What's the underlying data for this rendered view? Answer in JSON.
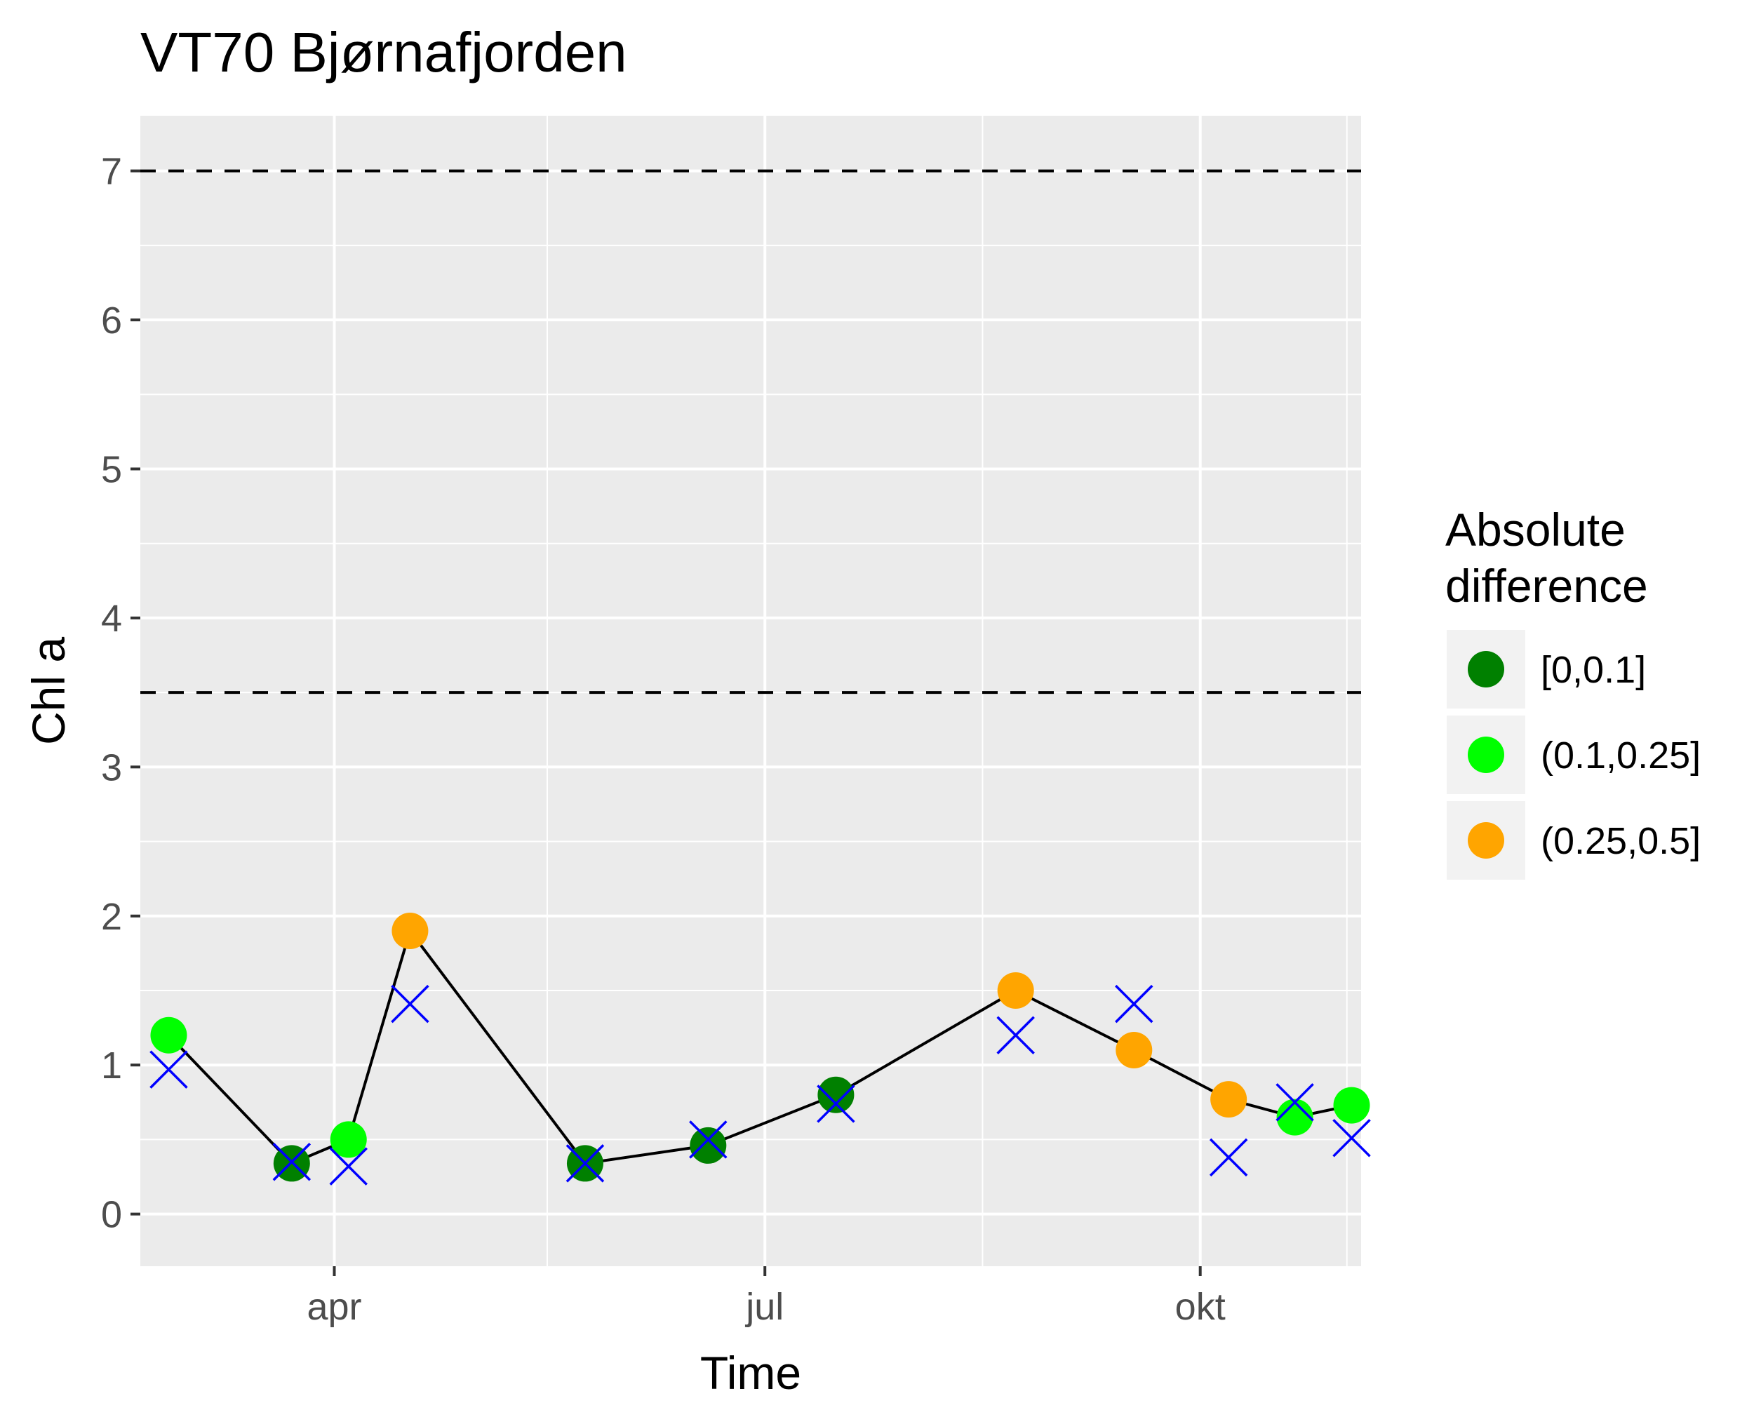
{
  "chart_data": {
    "type": "scatter",
    "title": "VT70 Bjørnafjorden",
    "xlabel": "Time",
    "ylabel": "Chl a",
    "xlim": [
      "2017-02-19",
      "2017-11-04"
    ],
    "ylim": [
      -0.35,
      7.37
    ],
    "x_ticks": [
      {
        "date": "2017-04-01",
        "label": "apr"
      },
      {
        "date": "2017-07-01",
        "label": "jul"
      },
      {
        "date": "2017-10-01",
        "label": "okt"
      }
    ],
    "x_minor_ticks": [
      "2017-02-15",
      "2017-05-16",
      "2017-08-16",
      "2017-11-01"
    ],
    "y_ticks": [
      0,
      1,
      2,
      3,
      4,
      5,
      6,
      7
    ],
    "grid": true,
    "reference_lines": [
      {
        "y": 7,
        "style": "dashed"
      },
      {
        "y": 3.5,
        "style": "dashed"
      }
    ],
    "legend": {
      "title_lines": [
        "Absolute",
        "difference"
      ],
      "placement": "right",
      "entries": [
        {
          "label": "[0,0.1]",
          "color": "#008000"
        },
        {
          "label": "(0.1,0.25]",
          "color": "#00ff00"
        },
        {
          "label": "(0.25,0.5]",
          "color": "#ffa500"
        }
      ]
    },
    "series": [
      {
        "kind": "line-points",
        "line_color": "#000000",
        "points": [
          {
            "x": "2017-02-25",
            "y": 1.2,
            "class": 1
          },
          {
            "x": "2017-03-23",
            "y": 0.34,
            "class": 0
          },
          {
            "x": "2017-04-04",
            "y": 0.5,
            "class": 1
          },
          {
            "x": "2017-04-17",
            "y": 1.9,
            "class": 2
          },
          {
            "x": "2017-05-24",
            "y": 0.34,
            "class": 0
          },
          {
            "x": "2017-06-19",
            "y": 0.46,
            "class": 0
          },
          {
            "x": "2017-07-16",
            "y": 0.8,
            "class": 0
          },
          {
            "x": "2017-08-23",
            "y": 1.5,
            "class": 2
          },
          {
            "x": "2017-09-17",
            "y": 1.1,
            "class": 2
          },
          {
            "x": "2017-10-07",
            "y": 0.77,
            "class": 2
          },
          {
            "x": "2017-10-21",
            "y": 0.65,
            "class": 1
          },
          {
            "x": "2017-11-02",
            "y": 0.73,
            "class": 1
          }
        ]
      },
      {
        "kind": "x-markers",
        "color": "#0000ff",
        "points": [
          {
            "x": "2017-02-25",
            "y": 0.97
          },
          {
            "x": "2017-03-23",
            "y": 0.35
          },
          {
            "x": "2017-04-04",
            "y": 0.32
          },
          {
            "x": "2017-04-17",
            "y": 1.41
          },
          {
            "x": "2017-05-24",
            "y": 0.34
          },
          {
            "x": "2017-06-19",
            "y": 0.5
          },
          {
            "x": "2017-07-16",
            "y": 0.74
          },
          {
            "x": "2017-08-23",
            "y": 1.2
          },
          {
            "x": "2017-09-17",
            "y": 1.41
          },
          {
            "x": "2017-10-07",
            "y": 0.38
          },
          {
            "x": "2017-10-21",
            "y": 0.75
          },
          {
            "x": "2017-11-02",
            "y": 0.51
          }
        ]
      }
    ]
  }
}
